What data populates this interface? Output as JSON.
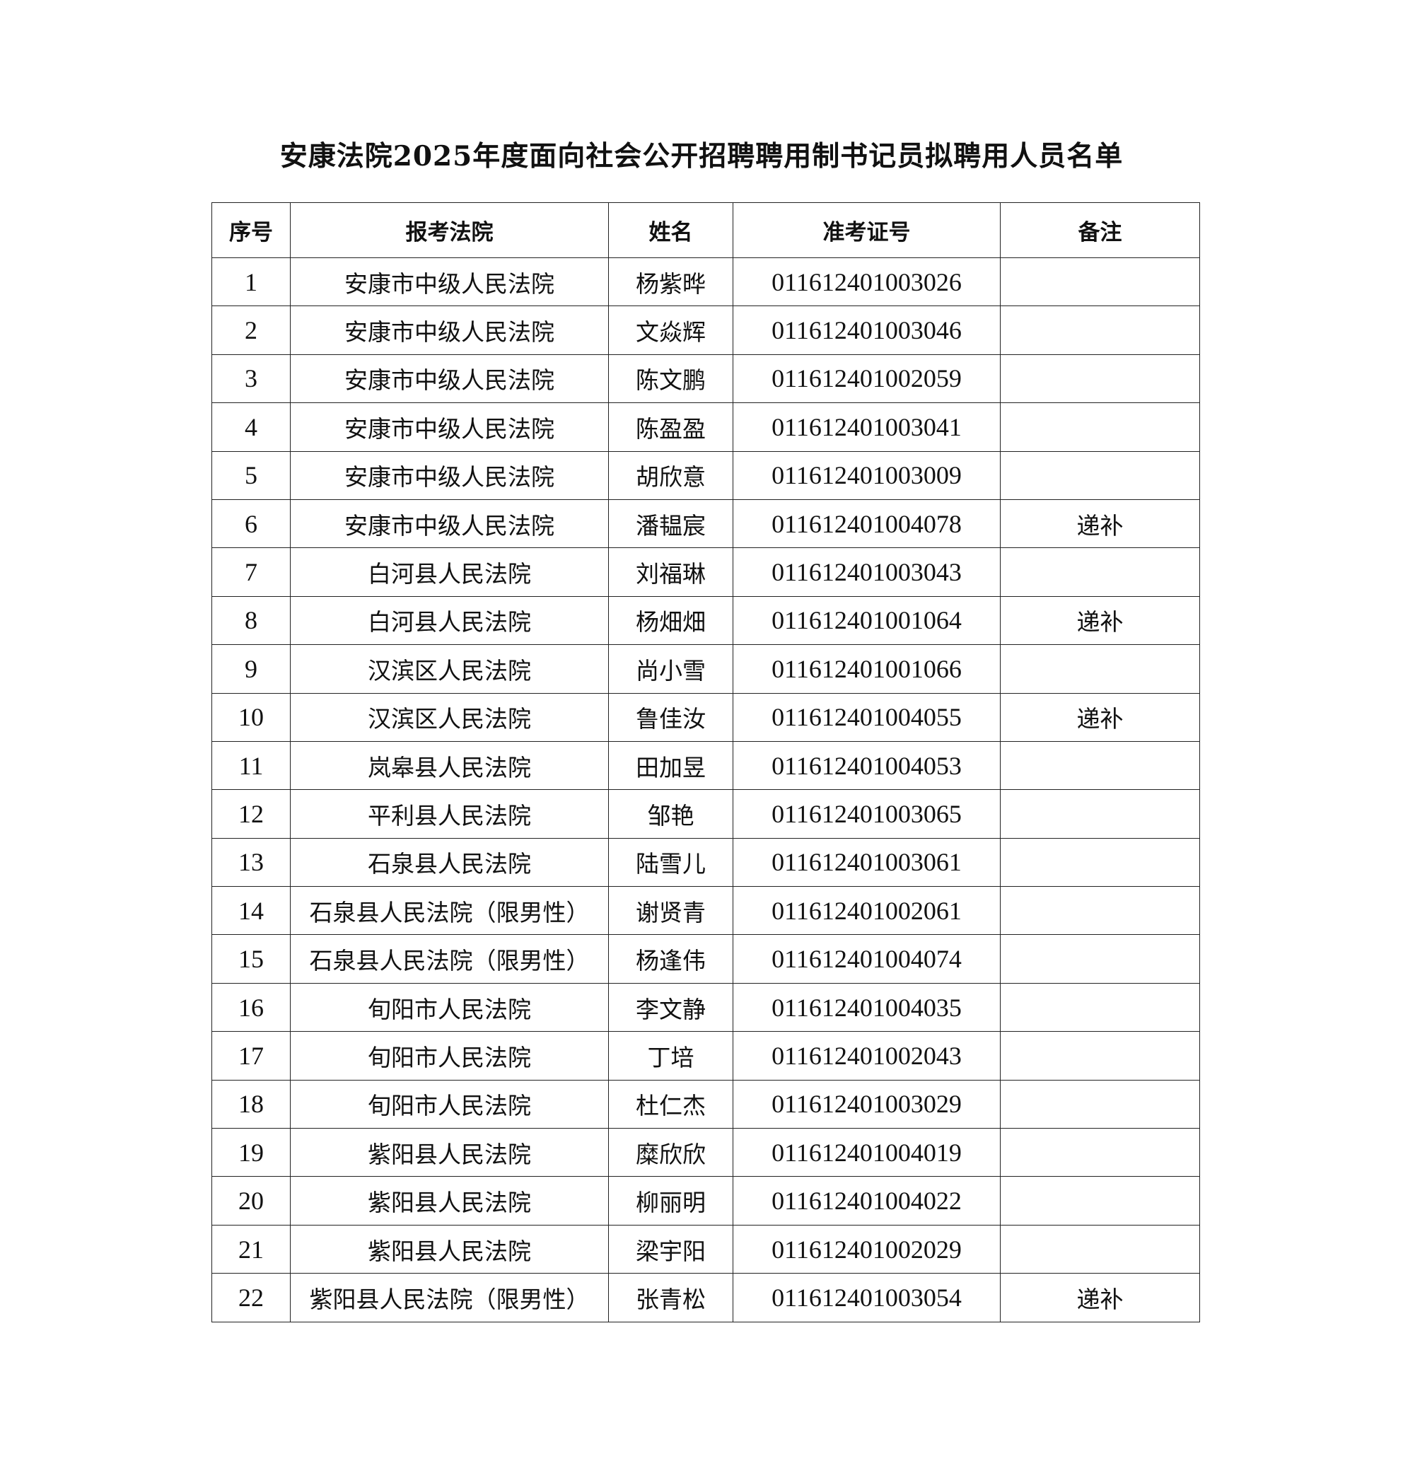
{
  "title": "安康法院2025年度面向社会公开招聘聘用制书记员拟聘用人员名单",
  "table": {
    "headers": [
      "序号",
      "报考法院",
      "姓名",
      "准考证号",
      "备注"
    ],
    "rows": [
      [
        "1",
        "安康市中级人民法院",
        "杨紫晔",
        "011612401003026",
        ""
      ],
      [
        "2",
        "安康市中级人民法院",
        "文焱辉",
        "011612401003046",
        ""
      ],
      [
        "3",
        "安康市中级人民法院",
        "陈文鹏",
        "011612401002059",
        ""
      ],
      [
        "4",
        "安康市中级人民法院",
        "陈盈盈",
        "011612401003041",
        ""
      ],
      [
        "5",
        "安康市中级人民法院",
        "胡欣意",
        "011612401003009",
        ""
      ],
      [
        "6",
        "安康市中级人民法院",
        "潘韫宸",
        "011612401004078",
        "递补"
      ],
      [
        "7",
        "白河县人民法院",
        "刘福琳",
        "011612401003043",
        ""
      ],
      [
        "8",
        "白河县人民法院",
        "杨畑畑",
        "011612401001064",
        "递补"
      ],
      [
        "9",
        "汉滨区人民法院",
        "尚小雪",
        "011612401001066",
        ""
      ],
      [
        "10",
        "汉滨区人民法院",
        "鲁佳汝",
        "011612401004055",
        "递补"
      ],
      [
        "11",
        "岚皋县人民法院",
        "田加昱",
        "011612401004053",
        ""
      ],
      [
        "12",
        "平利县人民法院",
        "邹艳",
        "011612401003065",
        ""
      ],
      [
        "13",
        "石泉县人民法院",
        "陆雪儿",
        "011612401003061",
        ""
      ],
      [
        "14",
        "石泉县人民法院（限男性）",
        "谢贤青",
        "011612401002061",
        ""
      ],
      [
        "15",
        "石泉县人民法院（限男性）",
        "杨逢伟",
        "011612401004074",
        ""
      ],
      [
        "16",
        "旬阳市人民法院",
        "李文静",
        "011612401004035",
        ""
      ],
      [
        "17",
        "旬阳市人民法院",
        "丁培",
        "011612401002043",
        ""
      ],
      [
        "18",
        "旬阳市人民法院",
        "杜仁杰",
        "011612401003029",
        ""
      ],
      [
        "19",
        "紫阳县人民法院",
        "糜欣欣",
        "011612401004019",
        ""
      ],
      [
        "20",
        "紫阳县人民法院",
        "柳丽明",
        "011612401004022",
        ""
      ],
      [
        "21",
        "紫阳县人民法院",
        "梁宇阳",
        "011612401002029",
        ""
      ],
      [
        "22",
        "紫阳县人民法院（限男性）",
        "张青松",
        "011612401003054",
        "递补"
      ]
    ]
  }
}
